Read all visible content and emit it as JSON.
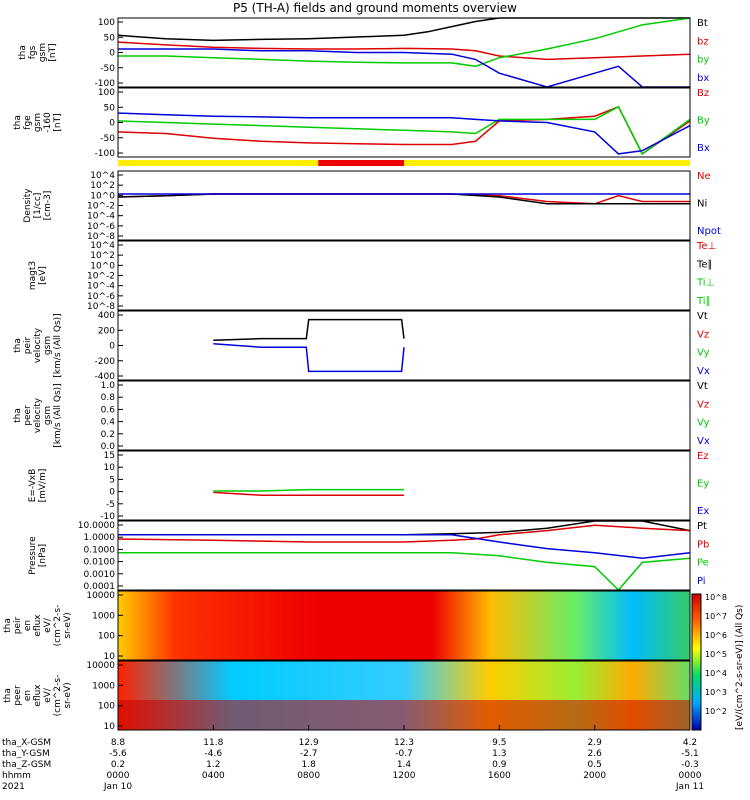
{
  "title": "P5 (TH-A) fields and ground moments overview",
  "colors": {
    "black": "#000000",
    "red": "#dd0000",
    "green": "#00cc00",
    "blue": "#0000dd"
  },
  "bar": {
    "segments": [
      {
        "from": 0,
        "to": 0.35,
        "color": "#ffee00"
      },
      {
        "from": 0.35,
        "to": 0.5,
        "color": "#ee0000"
      },
      {
        "from": 0.5,
        "to": 1.0,
        "color": "#ffee00"
      }
    ]
  },
  "panels": [
    {
      "ylabel": [
        "tha",
        "fgs",
        "gsm",
        "[nT]"
      ],
      "ticks": [
        "100",
        "50",
        "0",
        "-50",
        "-100"
      ],
      "legend": [
        [
          "Bt",
          "black"
        ],
        [
          "bz",
          "red"
        ],
        [
          "by",
          "green"
        ],
        [
          "bx",
          "blue"
        ]
      ]
    },
    {
      "ylabel": [
        "tha",
        "fge",
        "gsm",
        "-160",
        "[nT]"
      ],
      "ticks": [
        "100",
        "50",
        "0",
        "-50",
        "-100"
      ],
      "legend": [
        [
          "Bz",
          "red"
        ],
        [
          "By",
          "green"
        ],
        [
          "Bx",
          "blue"
        ]
      ]
    },
    {
      "ylabel": [
        "Density",
        "[1/cc]",
        "[cm-3]"
      ],
      "ticks": [
        "10^4",
        "10^2",
        "10^0",
        "10^-2",
        "10^-4",
        "10^-6",
        "10^-8"
      ],
      "legend": [
        [
          "Ne",
          "red"
        ],
        [
          "Ni",
          "black"
        ],
        [
          "Npot",
          "blue"
        ]
      ]
    },
    {
      "ylabel": [
        "magt3",
        "[eV]"
      ],
      "ticks": [
        "10^4",
        "10^2",
        "10^0",
        "10^-2",
        "10^-4",
        "10^-6",
        "10^-8"
      ],
      "legend": [
        [
          "Te⊥",
          "red"
        ],
        [
          "Te∥",
          "black"
        ],
        [
          "Ti⊥",
          "green"
        ],
        [
          "Ti∥",
          "green"
        ]
      ]
    },
    {
      "ylabel": [
        "tha",
        "peir",
        "velocity",
        "gsm",
        "[km/s (All Qs)]"
      ],
      "ticks": [
        "400",
        "200",
        "0",
        "-200",
        "-400"
      ],
      "legend": [
        [
          "Vt",
          "black"
        ],
        [
          "Vz",
          "red"
        ],
        [
          "Vy",
          "green"
        ],
        [
          "Vx",
          "blue"
        ]
      ]
    },
    {
      "ylabel": [
        "tha",
        "peer",
        "velocity",
        "gsm",
        "[km/s (All Qs)]"
      ],
      "ticks": [
        "1.0",
        "0.8",
        "0.6",
        "0.4",
        "0.2",
        "0.0"
      ],
      "legend": [
        [
          "Vt",
          "black"
        ],
        [
          "Vz",
          "red"
        ],
        [
          "Vy",
          "green"
        ],
        [
          "Vx",
          "blue"
        ]
      ]
    },
    {
      "ylabel": [
        "E=-VxB",
        "[mV/m]"
      ],
      "ticks": [
        "15",
        "10",
        "5",
        "0",
        "-5",
        "-10"
      ],
      "legend": [
        [
          "Ez",
          "red"
        ],
        [
          "Ey",
          "green"
        ],
        [
          "Ex",
          "blue"
        ]
      ]
    },
    {
      "ylabel": [
        "Pressure",
        "[nPa]"
      ],
      "ticks": [
        "10.0000",
        "1.0000",
        "0.1000",
        "0.0100",
        "0.0010",
        "0.0001"
      ],
      "legend": [
        [
          "Pt",
          "black"
        ],
        [
          "Pb",
          "red"
        ],
        [
          "Pe",
          "green"
        ],
        [
          "Pi",
          "blue"
        ]
      ]
    },
    {
      "ylabel": [
        "tha",
        "peir",
        "en",
        "eflux",
        "eV/",
        "(cm^2-s-",
        "sr-eV)"
      ],
      "ticks": [
        "10000",
        "1000",
        "100",
        "10"
      ],
      "legend": []
    },
    {
      "ylabel": [
        "tha",
        "peer",
        "en",
        "eflux",
        "eV/",
        "(cm^2-s-",
        "sr-eV)"
      ],
      "ticks": [
        "10000",
        "1000",
        "100",
        "10"
      ],
      "legend": []
    }
  ],
  "colorbar": {
    "label": "[eV/(cm^2-s-sr-eV)] (All Qs)",
    "ticks": [
      "10^8",
      "10^7",
      "10^6",
      "10^5",
      "10^4",
      "10^3",
      "10^2"
    ]
  },
  "xaxis": {
    "rows": [
      {
        "label": "tha_X-GSM",
        "values": [
          "8.8",
          "11.8",
          "12.9",
          "12.3",
          "9.5",
          "2.9",
          "4.2"
        ]
      },
      {
        "label": "tha_Y-GSM",
        "values": [
          "-5.6",
          "-4.6",
          "-2.7",
          "-0.7",
          "1.3",
          "2.6",
          "-5.1"
        ]
      },
      {
        "label": "tha_Z-GSM",
        "values": [
          "0.2",
          "1.2",
          "1.8",
          "1.4",
          "0.9",
          "0.5",
          "-0.3"
        ]
      },
      {
        "label": "hhmm",
        "values": [
          "0000",
          "0400",
          "0800",
          "1200",
          "1600",
          "2000",
          "0000"
        ]
      },
      {
        "label": "2021",
        "values": [
          "Jan 10",
          "",
          "",
          "",
          "",
          "",
          "Jan 11"
        ]
      }
    ],
    "hours": [
      0,
      4,
      8,
      12,
      16,
      20,
      24
    ]
  },
  "chart_data": {
    "type": "line",
    "title": "P5 (TH-A) fields and ground moments overview",
    "x_unit": "UT hours from 2021-01-10 00:00",
    "xlim": [
      0,
      24
    ],
    "series": [
      {
        "name": "Bt",
        "x": [
          0,
          2,
          4,
          6,
          8,
          10,
          12,
          13,
          14,
          15,
          16,
          17,
          18,
          19,
          20,
          21,
          22,
          23,
          24
        ],
        "values": [
          50,
          40,
          35,
          38,
          40,
          45,
          50,
          60,
          75,
          90,
          100,
          100,
          100,
          100,
          100,
          100,
          100,
          100,
          100
        ]
      },
      {
        "name": "bz",
        "x": [
          0,
          2,
          4,
          6,
          8,
          10,
          12,
          14,
          15,
          16,
          18,
          20,
          22,
          24
        ],
        "values": [
          30,
          22,
          15,
          12,
          10,
          10,
          12,
          10,
          5,
          -10,
          -20,
          -15,
          -10,
          -5
        ]
      },
      {
        "name": "by",
        "x": [
          0,
          2,
          4,
          6,
          8,
          10,
          12,
          14,
          15,
          16,
          18,
          20,
          22,
          24
        ],
        "values": [
          -10,
          -10,
          -15,
          -20,
          -25,
          -28,
          -30,
          -30,
          -40,
          -15,
          10,
          40,
          80,
          100
        ]
      },
      {
        "name": "bx",
        "x": [
          0,
          2,
          4,
          6,
          8,
          10,
          12,
          14,
          15,
          16,
          18,
          20,
          21,
          22,
          24
        ],
        "values": [
          10,
          10,
          10,
          5,
          5,
          0,
          0,
          -5,
          -20,
          -60,
          -100,
          -60,
          -40,
          -100,
          -100
        ]
      },
      {
        "name": "Bz",
        "x": [
          0,
          2,
          4,
          6,
          8,
          10,
          12,
          14,
          15,
          16,
          18,
          20,
          21,
          22,
          24
        ],
        "values": [
          -40,
          -45,
          -60,
          -70,
          -75,
          -78,
          -80,
          -80,
          -70,
          -5,
          0,
          10,
          40,
          -110,
          -5
        ]
      },
      {
        "name": "By",
        "x": [
          0,
          2,
          4,
          6,
          8,
          10,
          12,
          14,
          15,
          16,
          18,
          20,
          21,
          22,
          24
        ],
        "values": [
          -5,
          -10,
          -15,
          -20,
          -25,
          -30,
          -35,
          -40,
          -45,
          0,
          0,
          0,
          40,
          -110,
          0
        ]
      },
      {
        "name": "Bx",
        "x": [
          0,
          2,
          4,
          6,
          8,
          10,
          12,
          14,
          15,
          16,
          18,
          20,
          21,
          22,
          24
        ],
        "values": [
          20,
          15,
          10,
          8,
          5,
          5,
          5,
          5,
          0,
          -5,
          -10,
          -40,
          -110,
          -100,
          -20
        ]
      },
      {
        "name": "Ne",
        "x": [
          0,
          2,
          4,
          8,
          12,
          14,
          16,
          18,
          20,
          21,
          22,
          24
        ],
        "values": [
          0.3,
          0.5,
          1,
          1,
          1,
          1,
          0.5,
          0.05,
          0.02,
          0.5,
          0.05,
          0.05
        ]
      },
      {
        "name": "Ni",
        "x": [
          0,
          2,
          4,
          8,
          12,
          14,
          16,
          18,
          20,
          24
        ],
        "values": [
          0.3,
          0.5,
          1,
          1,
          1,
          1,
          0.3,
          0.02,
          0.02,
          0.02
        ]
      },
      {
        "name": "Npot",
        "x": [
          0,
          4,
          8,
          12,
          14,
          16,
          18,
          20,
          24
        ],
        "values": [
          1,
          1,
          1,
          1,
          1,
          1,
          1,
          1,
          1
        ]
      },
      {
        "name": "Vt",
        "x": [
          4,
          6,
          7.9,
          8,
          10,
          11.9,
          12
        ],
        "values": [
          60,
          80,
          80,
          300,
          300,
          300,
          80
        ]
      },
      {
        "name": "Vx",
        "x": [
          4,
          6,
          7.9,
          8,
          10,
          11.9,
          12
        ],
        "values": [
          20,
          -20,
          -20,
          -300,
          -300,
          -300,
          -20
        ]
      },
      {
        "name": "Ez",
        "x": [
          4,
          6,
          8,
          10,
          12
        ],
        "values": [
          0,
          -1,
          -1,
          -1,
          -1
        ]
      },
      {
        "name": "Ey",
        "x": [
          4,
          6,
          8,
          10,
          12
        ],
        "values": [
          0.5,
          0.5,
          1,
          1,
          1
        ]
      },
      {
        "name": "Pt",
        "x": [
          0,
          4,
          8,
          12,
          14,
          16,
          18,
          20,
          22,
          24
        ],
        "values": [
          1,
          1,
          1,
          1,
          1.2,
          1.5,
          3,
          10,
          10,
          2
        ]
      },
      {
        "name": "Pb",
        "x": [
          0,
          4,
          8,
          12,
          14,
          15,
          16,
          18,
          20,
          22,
          24
        ],
        "values": [
          0.5,
          0.4,
          0.3,
          0.3,
          0.4,
          0.5,
          1,
          2,
          5,
          3,
          2
        ]
      },
      {
        "name": "Pe",
        "x": [
          0,
          4,
          8,
          12,
          14,
          16,
          18,
          20,
          21,
          22,
          24
        ],
        "values": [
          0.05,
          0.05,
          0.05,
          0.05,
          0.05,
          0.03,
          0.01,
          0.005,
          0.0001,
          0.01,
          0.02
        ]
      },
      {
        "name": "Pi",
        "x": [
          0,
          4,
          8,
          12,
          14,
          16,
          18,
          20,
          22,
          24
        ],
        "values": [
          1,
          1,
          1,
          1,
          1,
          0.3,
          0.1,
          0.05,
          0.02,
          0.05
        ]
      }
    ]
  }
}
